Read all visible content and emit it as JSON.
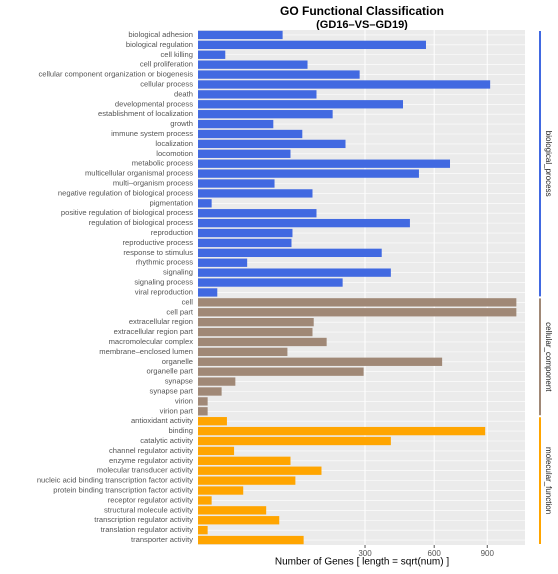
{
  "chart_data": {
    "type": "bar",
    "orientation": "horizontal",
    "title": "GO Functional Classification",
    "subtitle": "(GD16–VS–GD19)",
    "x_label": "Number of Genes [ length = sqrt(num) ]",
    "xscale": "sqrt",
    "xlim": [
      0,
      1150
    ],
    "xticks": [
      300,
      600,
      900
    ],
    "grid": true,
    "series": [
      {
        "name": "biological_process",
        "color": "#4169e1",
        "categories": [
          "biological adhesion",
          "biological regulation",
          "cell killing",
          "cell proliferation",
          "cellular component organization or biogenesis",
          "cellular process",
          "death",
          "developmental process",
          "establishment of localization",
          "growth",
          "immune system process",
          "localization",
          "locomotion",
          "metabolic process",
          "multicellular organismal process",
          "multi–organism process",
          "negative regulation of biological process",
          "pigmentation",
          "positive regulation of biological process",
          "regulation of biological process",
          "reproduction",
          "reproductive process",
          "response to stimulus",
          "rhythmic process",
          "signaling",
          "signaling process",
          "viral reproduction"
        ],
        "values": [
          77,
          559,
          8,
          129,
          281,
          918,
          151,
          452,
          195,
          61,
          117,
          234,
          92,
          683,
          525,
          63,
          141,
          2,
          151,
          483,
          96,
          94,
          363,
          26,
          400,
          225,
          4
        ]
      },
      {
        "name": "cellular_component",
        "color": "#a08876",
        "categories": [
          "cell",
          "cell part",
          "extracellular region",
          "extracellular region part",
          "macromolecular complex",
          "membrane–enclosed lumen",
          "organelle",
          "organelle part",
          "synapse",
          "synapse part",
          "virion",
          "virion part"
        ],
        "values": [
          1090,
          1090,
          144,
          141,
          178,
          86,
          641,
          295,
          15,
          6,
          1,
          1
        ]
      },
      {
        "name": "molecular_function",
        "color": "#ffa500",
        "categories": [
          "antioxidant activity",
          "binding",
          "catalytic activity",
          "channel regulator activity",
          "enzyme regulator activity",
          "molecular transducer activity",
          "nucleic acid binding transcription factor activity",
          "protein binding transcription factor activity",
          "receptor regulator activity",
          "structural molecule activity",
          "transcription regulator activity",
          "translation regulator activity",
          "transporter activity"
        ],
        "values": [
          9,
          887,
          400,
          14,
          92,
          164,
          102,
          22,
          2,
          50,
          71,
          1,
          120
        ]
      }
    ]
  }
}
